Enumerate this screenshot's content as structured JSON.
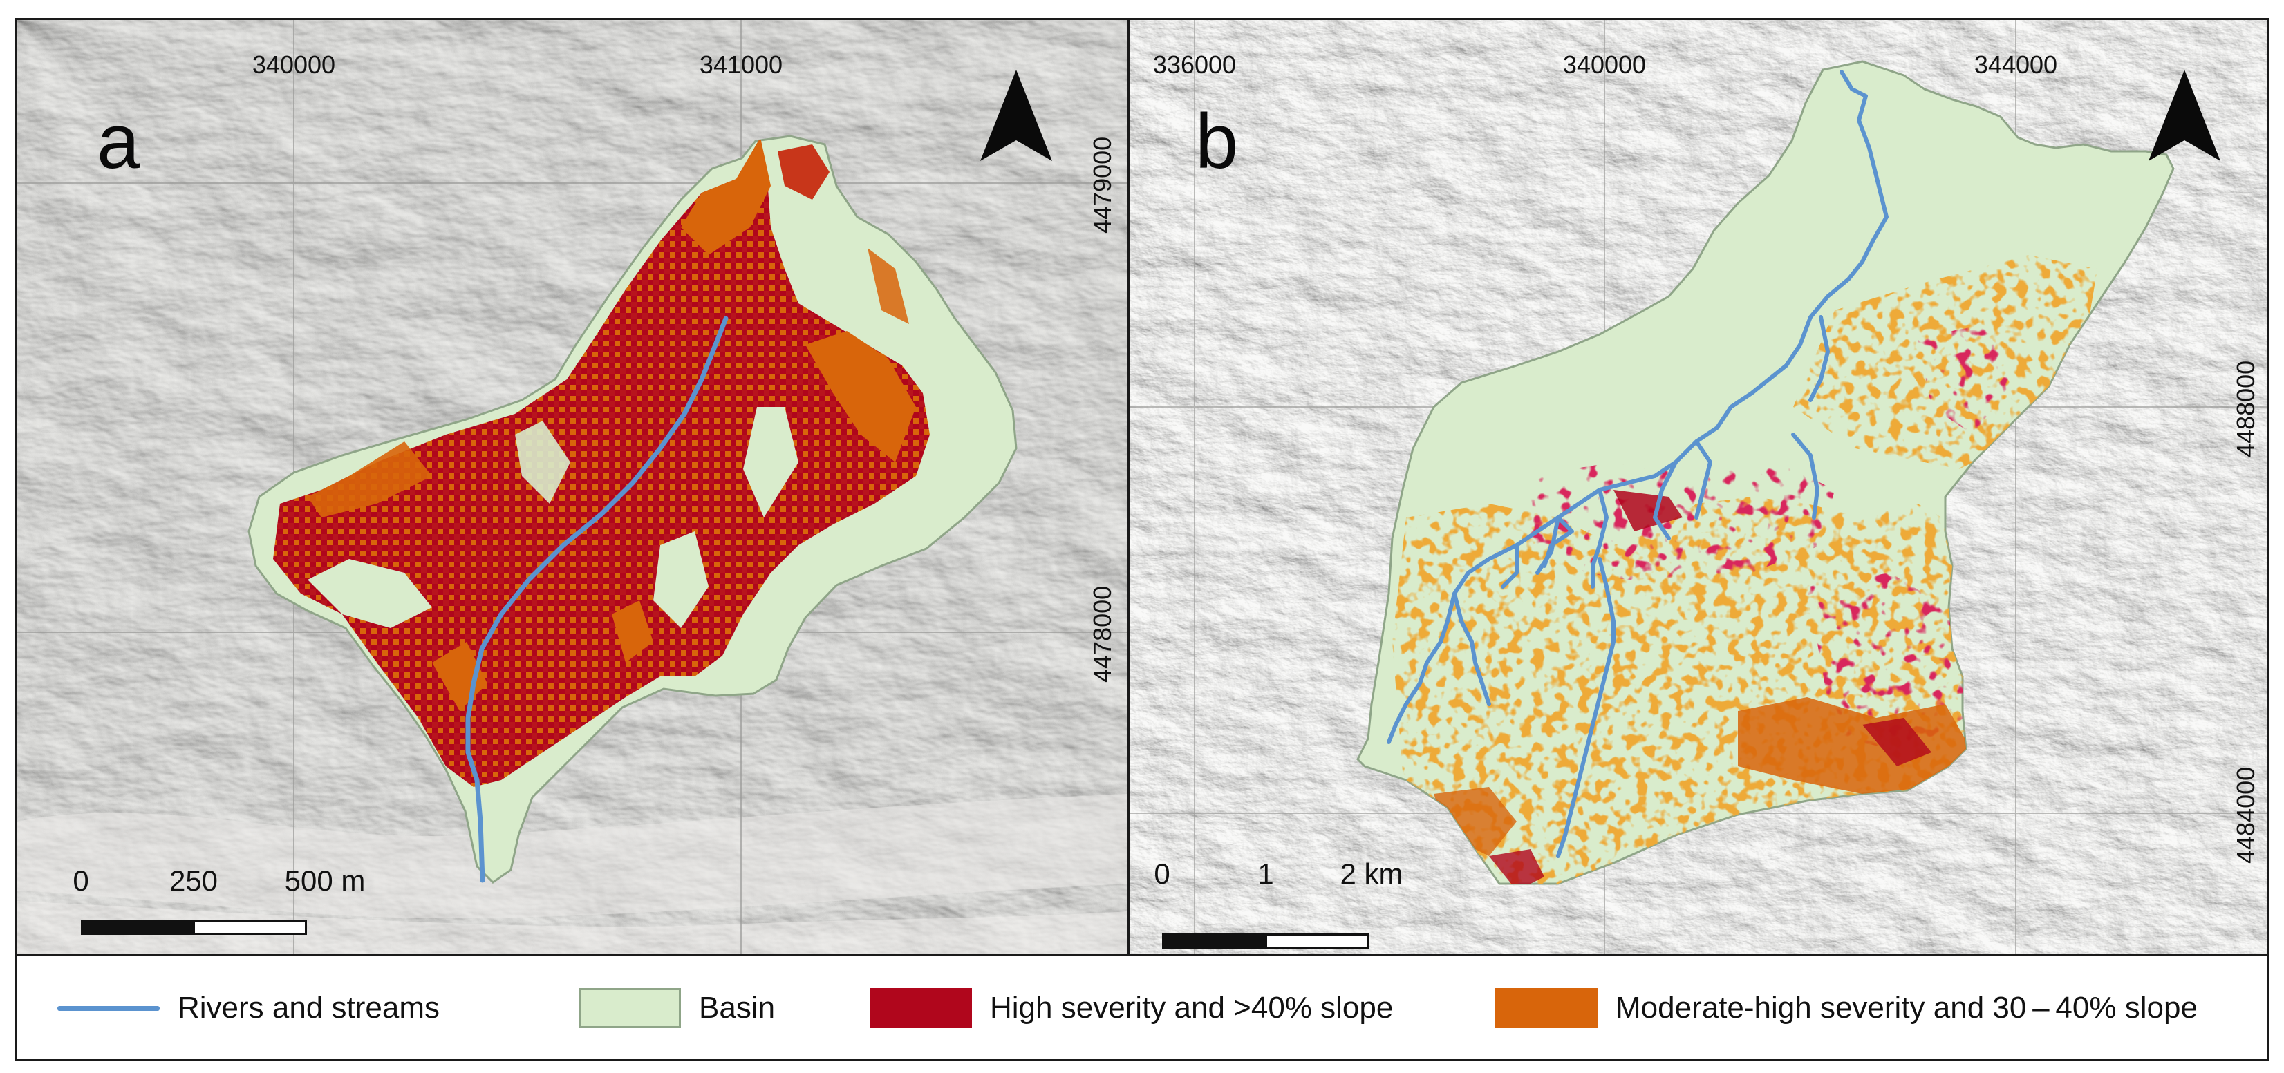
{
  "panels": {
    "a": {
      "letter": "a",
      "easting_ticks": [
        "340000",
        "341000"
      ],
      "northing_ticks": [
        "4479000",
        "4478000"
      ],
      "scale": {
        "labels": [
          "0",
          "250",
          "500 m"
        ]
      }
    },
    "b": {
      "letter": "b",
      "easting_ticks": [
        "336000",
        "340000",
        "344000"
      ],
      "northing_ticks": [
        "4488000",
        "4484000"
      ],
      "scale": {
        "labels": [
          "0",
          "1",
          "2 km"
        ]
      }
    }
  },
  "legend": {
    "rivers": "Rivers and streams",
    "basin": "Basin",
    "high": "High severity and >40% slope",
    "moderate": "Moderate-high severity and 30 – 40% slope"
  },
  "colors": {
    "river": "#5b93cf",
    "basin": "#d9eccc",
    "basin_outline": "#8fa588",
    "high": "#b0061c",
    "moderate": "#d8650b",
    "hillshade": "#d6d5d3"
  },
  "icons": [
    "north-arrow-icon"
  ]
}
